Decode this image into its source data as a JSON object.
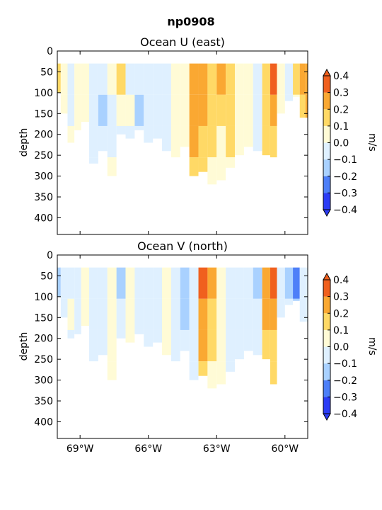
{
  "suptitle": "np0908",
  "chart_data": [
    {
      "type": "heatmap",
      "subtype": "filled-contour",
      "title": "Ocean U (east)",
      "xlabel": "",
      "ylabel": "depth",
      "ylim": [
        440,
        0
      ],
      "yticks": [
        0,
        50,
        100,
        150,
        200,
        250,
        300,
        350,
        400
      ],
      "xlim": [
        -70.0,
        -59.0
      ],
      "xticks": [
        -69,
        -66,
        -63,
        -60
      ],
      "xticklabels": [
        "69°W",
        "66°W",
        "63°W",
        "60°W"
      ],
      "x_tick_labels_visible": false,
      "colorbar": {
        "label": "m/s",
        "levels": [
          -0.4,
          -0.3,
          -0.2,
          -0.1,
          0.0,
          0.1,
          0.2,
          0.3,
          0.4
        ],
        "ticklabels": [
          "0.4",
          "0.3",
          "0.2",
          "0.1",
          "0.0",
          "−0.1",
          "−0.2",
          "−0.3",
          "−0.4"
        ],
        "colors": [
          "#2b3cf5",
          "#4d7ff8",
          "#a9d1ff",
          "#dff0ff",
          "#fffbd6",
          "#ffd966",
          "#faa832",
          "#f0601e"
        ],
        "extend": "both"
      },
      "profiles": [
        {
          "lon": -70.0,
          "maxdepth": 100,
          "values": [
            0.15,
            0.1
          ]
        },
        {
          "lon": -69.7,
          "maxdepth": 150,
          "values": [
            0.05,
            0.03,
            -0.02
          ]
        },
        {
          "lon": -69.4,
          "maxdepth": 220,
          "values": [
            -0.05,
            -0.03,
            0.02,
            -0.02
          ]
        },
        {
          "lon": -69.1,
          "maxdepth": 190,
          "values": [
            0.02,
            0.04,
            0.03,
            -0.02
          ]
        },
        {
          "lon": -68.8,
          "maxdepth": 170,
          "values": [
            0.03,
            0.06,
            0.04,
            0.02
          ]
        },
        {
          "lon": -68.4,
          "maxdepth": 270,
          "values": [
            -0.04,
            -0.05,
            -0.03,
            -0.02
          ]
        },
        {
          "lon": -68.0,
          "maxdepth": 240,
          "values": [
            -0.02,
            -0.12,
            -0.05,
            -0.03
          ]
        },
        {
          "lon": -67.6,
          "maxdepth": 300,
          "values": [
            0.03,
            -0.05,
            -0.04,
            0.02
          ]
        },
        {
          "lon": -67.2,
          "maxdepth": 200,
          "values": [
            0.15,
            0.04,
            -0.03
          ]
        },
        {
          "lon": -66.8,
          "maxdepth": 210,
          "values": [
            -0.03,
            0.02,
            -0.04
          ]
        },
        {
          "lon": -66.4,
          "maxdepth": 190,
          "values": [
            -0.05,
            -0.12,
            -0.04
          ]
        },
        {
          "lon": -66.0,
          "maxdepth": 220,
          "values": [
            -0.04,
            -0.06,
            -0.03
          ]
        },
        {
          "lon": -65.6,
          "maxdepth": 210,
          "values": [
            -0.03,
            -0.05,
            -0.04
          ]
        },
        {
          "lon": -65.2,
          "maxdepth": 240,
          "values": [
            -0.02,
            -0.04,
            -0.03
          ]
        },
        {
          "lon": -64.8,
          "maxdepth": 260,
          "values": [
            0.04,
            0.03,
            0.05
          ]
        },
        {
          "lon": -64.4,
          "maxdepth": 230,
          "values": [
            0.08,
            0.06,
            0.04
          ]
        },
        {
          "lon": -64.0,
          "maxdepth": 300,
          "values": [
            0.22,
            0.25,
            0.22,
            0.18
          ]
        },
        {
          "lon": -63.6,
          "maxdepth": 290,
          "values": [
            0.25,
            0.22,
            0.18,
            0.12
          ]
        },
        {
          "lon": -63.2,
          "maxdepth": 320,
          "values": [
            0.12,
            0.16,
            0.12,
            0.05
          ]
        },
        {
          "lon": -62.8,
          "maxdepth": 310,
          "values": [
            0.2,
            0.15,
            0.08,
            0.05
          ]
        },
        {
          "lon": -62.4,
          "maxdepth": 280,
          "values": [
            0.15,
            0.16,
            0.12,
            0.06
          ]
        },
        {
          "lon": -62.0,
          "maxdepth": 250,
          "values": [
            0.04,
            0.06,
            0.05
          ]
        },
        {
          "lon": -61.6,
          "maxdepth": 230,
          "values": [
            0.06,
            0.08,
            0.05
          ]
        },
        {
          "lon": -61.2,
          "maxdepth": 240,
          "values": [
            -0.04,
            -0.05,
            -0.03
          ]
        },
        {
          "lon": -60.8,
          "maxdepth": 250,
          "values": [
            0.12,
            0.15,
            0.1
          ]
        },
        {
          "lon": -60.5,
          "maxdepth": 260,
          "values": [
            0.3,
            0.22,
            0.16
          ]
        },
        {
          "lon": -60.2,
          "maxdepth": 150,
          "values": [
            0.03,
            0.05
          ]
        },
        {
          "lon": -59.8,
          "maxdepth": 120,
          "values": [
            -0.04,
            -0.03
          ]
        },
        {
          "lon": -59.5,
          "maxdepth": 110,
          "values": [
            0.14,
            0.06
          ]
        },
        {
          "lon": -59.2,
          "maxdepth": 160,
          "values": [
            0.22,
            0.18
          ]
        },
        {
          "lon": -59.0,
          "maxdepth": 160,
          "values": [
            0.22,
            0.2
          ]
        }
      ]
    },
    {
      "type": "heatmap",
      "subtype": "filled-contour",
      "title": "Ocean V (north)",
      "xlabel": "",
      "ylabel": "depth",
      "ylim": [
        440,
        0
      ],
      "yticks": [
        0,
        50,
        100,
        150,
        200,
        250,
        300,
        350,
        400
      ],
      "xlim": [
        -70.0,
        -59.0
      ],
      "xticks": [
        -69,
        -66,
        -63,
        -60
      ],
      "xticklabels": [
        "69°W",
        "66°W",
        "63°W",
        "60°W"
      ],
      "x_tick_labels_visible": true,
      "colorbar": {
        "label": "m/s",
        "levels": [
          -0.4,
          -0.3,
          -0.2,
          -0.1,
          0.0,
          0.1,
          0.2,
          0.3,
          0.4
        ],
        "ticklabels": [
          "0.4",
          "0.3",
          "0.2",
          "0.1",
          "0.0",
          "−0.1",
          "−0.2",
          "−0.3",
          "−0.4"
        ],
        "colors": [
          "#2b3cf5",
          "#4d7ff8",
          "#a9d1ff",
          "#dff0ff",
          "#fffbd6",
          "#ffd966",
          "#faa832",
          "#f0601e"
        ],
        "extend": "both"
      },
      "profiles": [
        {
          "lon": -70.0,
          "maxdepth": 100,
          "values": [
            -0.12,
            -0.05
          ]
        },
        {
          "lon": -69.7,
          "maxdepth": 150,
          "values": [
            -0.04,
            -0.03,
            -0.02
          ]
        },
        {
          "lon": -69.4,
          "maxdepth": 200,
          "values": [
            -0.05,
            0.03,
            -0.03
          ]
        },
        {
          "lon": -69.1,
          "maxdepth": 190,
          "values": [
            -0.08,
            -0.04,
            -0.03
          ]
        },
        {
          "lon": -68.8,
          "maxdepth": 170,
          "values": [
            0.03,
            0.04,
            0.02
          ]
        },
        {
          "lon": -68.4,
          "maxdepth": 270,
          "values": [
            -0.04,
            -0.05,
            -0.03
          ]
        },
        {
          "lon": -68.0,
          "maxdepth": 240,
          "values": [
            -0.1,
            -0.05,
            -0.03
          ]
        },
        {
          "lon": -67.6,
          "maxdepth": 300,
          "values": [
            0.04,
            0.03,
            0.02,
            0.02
          ]
        },
        {
          "lon": -67.2,
          "maxdepth": 200,
          "values": [
            -0.12,
            -0.05,
            -0.03
          ]
        },
        {
          "lon": -66.8,
          "maxdepth": 210,
          "values": [
            0.03,
            0.04,
            0.02
          ]
        },
        {
          "lon": -66.4,
          "maxdepth": 190,
          "values": [
            -0.04,
            -0.05,
            -0.03
          ]
        },
        {
          "lon": -66.0,
          "maxdepth": 220,
          "values": [
            -0.05,
            -0.06,
            -0.04
          ]
        },
        {
          "lon": -65.6,
          "maxdepth": 210,
          "values": [
            -0.03,
            -0.05,
            -0.04
          ]
        },
        {
          "lon": -65.2,
          "maxdepth": 240,
          "values": [
            0.03,
            0.04,
            0.02
          ]
        },
        {
          "lon": -64.8,
          "maxdepth": 260,
          "values": [
            -0.04,
            -0.05,
            -0.03
          ]
        },
        {
          "lon": -64.4,
          "maxdepth": 230,
          "values": [
            -0.12,
            -0.15,
            -0.06
          ]
        },
        {
          "lon": -64.0,
          "maxdepth": 300,
          "values": [
            -0.06,
            -0.08,
            -0.05,
            -0.03
          ]
        },
        {
          "lon": -63.6,
          "maxdepth": 290,
          "values": [
            0.35,
            0.28,
            0.2,
            0.12
          ]
        },
        {
          "lon": -63.2,
          "maxdepth": 320,
          "values": [
            0.22,
            0.15,
            0.1,
            0.04
          ]
        },
        {
          "lon": -62.8,
          "maxdepth": 310,
          "values": [
            0.08,
            0.06,
            0.05,
            0.03
          ]
        },
        {
          "lon": -62.4,
          "maxdepth": 280,
          "values": [
            -0.05,
            -0.06,
            -0.04,
            -0.03
          ]
        },
        {
          "lon": -62.0,
          "maxdepth": 250,
          "values": [
            -0.04,
            -0.05,
            -0.03
          ]
        },
        {
          "lon": -61.6,
          "maxdepth": 230,
          "values": [
            -0.03,
            -0.04,
            -0.02
          ]
        },
        {
          "lon": -61.2,
          "maxdepth": 240,
          "values": [
            -0.12,
            -0.08,
            -0.04
          ]
        },
        {
          "lon": -60.8,
          "maxdepth": 250,
          "values": [
            0.25,
            0.2,
            0.1
          ]
        },
        {
          "lon": -60.5,
          "maxdepth": 310,
          "values": [
            0.35,
            0.22,
            0.15,
            0.1
          ]
        },
        {
          "lon": -60.2,
          "maxdepth": 150,
          "values": [
            -0.04,
            -0.03
          ]
        },
        {
          "lon": -59.8,
          "maxdepth": 120,
          "values": [
            -0.15,
            -0.08
          ]
        },
        {
          "lon": -59.5,
          "maxdepth": 110,
          "values": [
            -0.22,
            -0.12
          ]
        },
        {
          "lon": -59.2,
          "maxdepth": 160,
          "values": [
            -0.05,
            -0.04
          ]
        },
        {
          "lon": -59.0,
          "maxdepth": 160,
          "values": [
            -0.04,
            -0.03
          ]
        }
      ]
    }
  ]
}
